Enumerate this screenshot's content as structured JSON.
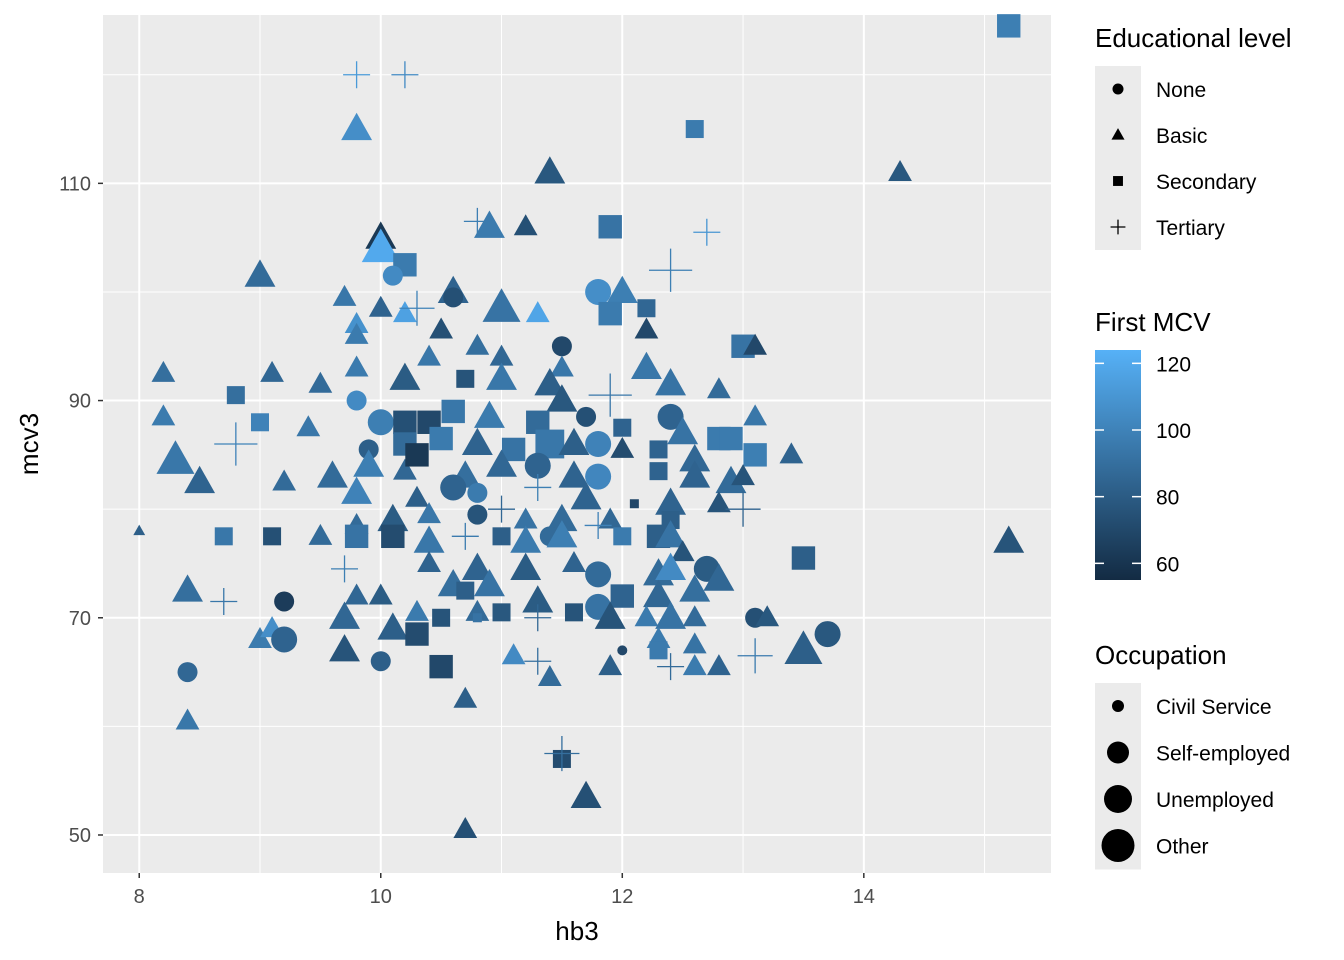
{
  "chart_data": {
    "type": "scatter",
    "xlabel": "hb3",
    "ylabel": "mcv3",
    "xlim": [
      7.7,
      15.55
    ],
    "ylim": [
      46.5,
      125.5
    ],
    "x_ticks": [
      8,
      10,
      12,
      14
    ],
    "y_ticks": [
      50,
      70,
      90,
      110
    ],
    "grid": true,
    "legend_placement": "right",
    "color_legend": {
      "title": "First MCV",
      "ticks": [
        60,
        80,
        100,
        120
      ],
      "range": [
        55,
        124
      ],
      "low_color": "#132B43",
      "high_color": "#56B1F7"
    },
    "shape_legend": {
      "title": "Educational level",
      "entries": [
        {
          "label": "None",
          "shape": "circle"
        },
        {
          "label": "Basic",
          "shape": "triangle"
        },
        {
          "label": "Secondary",
          "shape": "square"
        },
        {
          "label": "Tertiary",
          "shape": "plus"
        }
      ]
    },
    "size_legend": {
      "title": "Occupation",
      "entries": [
        {
          "label": "Civil Service",
          "size": 1
        },
        {
          "label": "Self-employed",
          "size": 2
        },
        {
          "label": "Unemployed",
          "size": 3
        },
        {
          "label": "Other",
          "size": 4
        }
      ]
    },
    "points": [
      [
        15.2,
        124.5,
        "square",
        3,
        98
      ],
      [
        14.3,
        111,
        "triangle",
        2,
        78
      ],
      [
        15.2,
        77,
        "triangle",
        3,
        76
      ],
      [
        12.6,
        115,
        "square",
        2,
        96
      ],
      [
        9.8,
        120,
        "plus",
        2,
        112
      ],
      [
        10.2,
        120,
        "plus",
        2,
        104
      ],
      [
        9.8,
        115,
        "triangle",
        3,
        106
      ],
      [
        11.4,
        111,
        "triangle",
        3,
        78
      ],
      [
        10.0,
        105,
        "triangle",
        3,
        62
      ],
      [
        10.0,
        104,
        "triangle",
        4,
        120
      ],
      [
        10.8,
        106.5,
        "plus",
        2,
        98
      ],
      [
        10.9,
        106,
        "triangle",
        3,
        96
      ],
      [
        11.2,
        106,
        "triangle",
        2,
        74
      ],
      [
        11.9,
        106,
        "square",
        3,
        92
      ],
      [
        12.7,
        105.5,
        "plus",
        2,
        110
      ],
      [
        10.2,
        102.5,
        "square",
        3,
        96
      ],
      [
        10.1,
        101.5,
        "circle",
        2,
        104
      ],
      [
        9.0,
        101.5,
        "triangle",
        3,
        88
      ],
      [
        12.4,
        102,
        "plus",
        4,
        98
      ],
      [
        11.8,
        100,
        "circle",
        3,
        106
      ],
      [
        12.0,
        100,
        "triangle",
        3,
        98
      ],
      [
        10.6,
        100,
        "triangle",
        3,
        84
      ],
      [
        9.7,
        99.5,
        "triangle",
        2,
        94
      ],
      [
        10.6,
        99.5,
        "circle",
        2,
        74
      ],
      [
        10.0,
        98.5,
        "triangle",
        2,
        84
      ],
      [
        11.0,
        98.5,
        "triangle",
        4,
        92
      ],
      [
        11.3,
        98,
        "triangle",
        2,
        118
      ],
      [
        10.2,
        98,
        "triangle",
        2,
        116
      ],
      [
        10.3,
        98.5,
        "plus",
        3,
        100
      ],
      [
        11.9,
        98,
        "square",
        3,
        96
      ],
      [
        12.2,
        98.5,
        "square",
        2,
        86
      ],
      [
        9.8,
        97,
        "triangle",
        2,
        108
      ],
      [
        10.5,
        96.5,
        "triangle",
        2,
        74
      ],
      [
        9.8,
        96,
        "triangle",
        2,
        96
      ],
      [
        12.2,
        96.5,
        "triangle",
        2,
        70
      ],
      [
        10.8,
        95,
        "triangle",
        2,
        90
      ],
      [
        11.0,
        94,
        "triangle",
        2,
        86
      ],
      [
        11.5,
        95,
        "circle",
        2,
        70
      ],
      [
        11.5,
        93,
        "triangle",
        2,
        94
      ],
      [
        13.0,
        95,
        "square",
        3,
        92
      ],
      [
        13.1,
        95,
        "triangle",
        2,
        70
      ],
      [
        8.2,
        92.5,
        "triangle",
        2,
        90
      ],
      [
        9.1,
        92.5,
        "triangle",
        2,
        86
      ],
      [
        9.5,
        91.5,
        "triangle",
        2,
        88
      ],
      [
        9.8,
        93,
        "triangle",
        2,
        96
      ],
      [
        10.2,
        92,
        "triangle",
        3,
        80
      ],
      [
        10.4,
        94,
        "triangle",
        2,
        94
      ],
      [
        10.7,
        92,
        "square",
        2,
        76
      ],
      [
        11.0,
        92,
        "triangle",
        3,
        94
      ],
      [
        11.4,
        91.5,
        "triangle",
        3,
        82
      ],
      [
        12.2,
        93,
        "triangle",
        3,
        94
      ],
      [
        12.4,
        91.5,
        "triangle",
        3,
        92
      ],
      [
        12.8,
        91,
        "triangle",
        2,
        88
      ],
      [
        11.9,
        90.5,
        "plus",
        4,
        94
      ],
      [
        9.8,
        90,
        "circle",
        2,
        104
      ],
      [
        11.5,
        90,
        "triangle",
        3,
        78
      ],
      [
        8.2,
        88.5,
        "triangle",
        2,
        96
      ],
      [
        8.8,
        90.5,
        "square",
        2,
        90
      ],
      [
        9.0,
        88,
        "square",
        2,
        100
      ],
      [
        9.4,
        87.5,
        "triangle",
        2,
        94
      ],
      [
        8.8,
        86,
        "plus",
        4,
        100
      ],
      [
        8.3,
        84.5,
        "triangle",
        4,
        94
      ],
      [
        8.5,
        82.5,
        "triangle",
        3,
        84
      ],
      [
        10.0,
        88,
        "circle",
        3,
        98
      ],
      [
        10.2,
        88,
        "square",
        3,
        74
      ],
      [
        10.4,
        88,
        "square",
        3,
        70
      ],
      [
        10.6,
        89,
        "square",
        3,
        94
      ],
      [
        10.9,
        88.5,
        "triangle",
        3,
        96
      ],
      [
        11.3,
        88,
        "square",
        3,
        88
      ],
      [
        11.7,
        88.5,
        "circle",
        2,
        74
      ],
      [
        12.0,
        87.5,
        "square",
        2,
        84
      ],
      [
        12.4,
        88.5,
        "circle",
        3,
        84
      ],
      [
        12.5,
        87,
        "triangle",
        3,
        92
      ],
      [
        12.8,
        86.5,
        "square",
        3,
        96
      ],
      [
        13.1,
        88.5,
        "triangle",
        2,
        94
      ],
      [
        9.9,
        85.5,
        "circle",
        2,
        82
      ],
      [
        10.2,
        86,
        "square",
        3,
        88
      ],
      [
        10.5,
        86.5,
        "square",
        3,
        96
      ],
      [
        10.8,
        86,
        "triangle",
        3,
        84
      ],
      [
        11.1,
        85.5,
        "square",
        3,
        92
      ],
      [
        11.4,
        86,
        "square",
        4,
        94
      ],
      [
        11.6,
        86,
        "triangle",
        3,
        82
      ],
      [
        11.8,
        86,
        "circle",
        3,
        100
      ],
      [
        12.0,
        85.5,
        "triangle",
        2,
        72
      ],
      [
        12.3,
        85.5,
        "square",
        2,
        84
      ],
      [
        12.6,
        84.5,
        "triangle",
        3,
        86
      ],
      [
        12.9,
        86.5,
        "square",
        3,
        96
      ],
      [
        13.1,
        85,
        "square",
        3,
        98
      ],
      [
        13.4,
        85,
        "triangle",
        2,
        84
      ],
      [
        9.6,
        83,
        "triangle",
        3,
        88
      ],
      [
        9.9,
        84,
        "triangle",
        3,
        98
      ],
      [
        10.2,
        83.5,
        "triangle",
        2,
        86
      ],
      [
        10.3,
        85,
        "square",
        3,
        62
      ],
      [
        10.7,
        83,
        "triangle",
        3,
        90
      ],
      [
        11.0,
        84,
        "triangle",
        3,
        86
      ],
      [
        11.3,
        84,
        "circle",
        3,
        84
      ],
      [
        11.6,
        83,
        "triangle",
        3,
        84
      ],
      [
        11.8,
        83,
        "circle",
        3,
        102
      ],
      [
        12.3,
        83.5,
        "square",
        2,
        84
      ],
      [
        12.6,
        83,
        "triangle",
        3,
        84
      ],
      [
        12.9,
        82.5,
        "triangle",
        3,
        88
      ],
      [
        13.0,
        83,
        "triangle",
        2,
        76
      ],
      [
        9.2,
        82.5,
        "triangle",
        2,
        88
      ],
      [
        9.8,
        81.5,
        "triangle",
        3,
        100
      ],
      [
        10.3,
        81,
        "triangle",
        2,
        82
      ],
      [
        10.6,
        82,
        "circle",
        3,
        84
      ],
      [
        10.8,
        81.5,
        "circle",
        2,
        96
      ],
      [
        11.3,
        82,
        "plus",
        2,
        98
      ],
      [
        11.7,
        81,
        "triangle",
        3,
        84
      ],
      [
        12.4,
        80.5,
        "triangle",
        3,
        84
      ],
      [
        12.8,
        80.5,
        "triangle",
        2,
        76
      ],
      [
        13.0,
        80,
        "plus",
        3,
        84
      ],
      [
        9.8,
        78.5,
        "triangle",
        2,
        88
      ],
      [
        10.1,
        79,
        "triangle",
        3,
        80
      ],
      [
        10.4,
        79.5,
        "triangle",
        2,
        94
      ],
      [
        10.8,
        79.5,
        "circle",
        2,
        76
      ],
      [
        11.0,
        80,
        "plus",
        2,
        86
      ],
      [
        11.2,
        79,
        "triangle",
        2,
        92
      ],
      [
        11.5,
        79,
        "triangle",
        3,
        88
      ],
      [
        11.9,
        79,
        "triangle",
        2,
        86
      ],
      [
        12.1,
        80.5,
        "square",
        1,
        70
      ],
      [
        12.4,
        79,
        "square",
        2,
        82
      ],
      [
        8.0,
        78,
        "triangle",
        1,
        82
      ],
      [
        8.7,
        77.5,
        "square",
        2,
        94
      ],
      [
        9.1,
        77.5,
        "square",
        2,
        74
      ],
      [
        9.5,
        77.5,
        "triangle",
        2,
        88
      ],
      [
        9.8,
        77.5,
        "square",
        3,
        92
      ],
      [
        10.1,
        77.5,
        "square",
        3,
        72
      ],
      [
        10.4,
        77,
        "triangle",
        3,
        94
      ],
      [
        10.7,
        77.5,
        "plus",
        2,
        96
      ],
      [
        11.0,
        77.5,
        "square",
        2,
        82
      ],
      [
        11.2,
        77,
        "triangle",
        3,
        96
      ],
      [
        11.4,
        77.5,
        "circle",
        2,
        88
      ],
      [
        11.5,
        77.5,
        "triangle",
        3,
        98
      ],
      [
        11.8,
        78.5,
        "plus",
        2,
        100
      ],
      [
        12.0,
        77.5,
        "square",
        2,
        96
      ],
      [
        12.3,
        77.5,
        "square",
        3,
        82
      ],
      [
        12.4,
        77.5,
        "triangle",
        3,
        92
      ],
      [
        12.5,
        76,
        "triangle",
        2,
        76
      ],
      [
        13.5,
        75.5,
        "square",
        3,
        82
      ],
      [
        9.7,
        74.5,
        "plus",
        2,
        98
      ],
      [
        10.4,
        75,
        "triangle",
        2,
        84
      ],
      [
        10.8,
        74.5,
        "triangle",
        3,
        84
      ],
      [
        11.2,
        74.5,
        "triangle",
        3,
        80
      ],
      [
        11.6,
        75,
        "triangle",
        2,
        84
      ],
      [
        11.8,
        74,
        "circle",
        3,
        88
      ],
      [
        12.3,
        74,
        "triangle",
        3,
        88
      ],
      [
        12.4,
        74.5,
        "triangle",
        3,
        104
      ],
      [
        12.7,
        74.5,
        "circle",
        3,
        80
      ],
      [
        12.8,
        73.5,
        "triangle",
        3,
        86
      ],
      [
        8.4,
        72.5,
        "triangle",
        3,
        90
      ],
      [
        8.7,
        71.5,
        "plus",
        2,
        94
      ],
      [
        9.2,
        71.5,
        "circle",
        2,
        64
      ],
      [
        9.8,
        72,
        "triangle",
        2,
        86
      ],
      [
        10.0,
        72,
        "triangle",
        2,
        80
      ],
      [
        10.6,
        73,
        "triangle",
        3,
        90
      ],
      [
        10.7,
        72.5,
        "square",
        2,
        82
      ],
      [
        10.9,
        73,
        "triangle",
        3,
        92
      ],
      [
        11.3,
        71.5,
        "triangle",
        3,
        80
      ],
      [
        11.8,
        71,
        "circle",
        3,
        92
      ],
      [
        12.0,
        72,
        "square",
        3,
        84
      ],
      [
        12.3,
        72,
        "triangle",
        3,
        86
      ],
      [
        12.6,
        72.5,
        "triangle",
        3,
        90
      ],
      [
        9.7,
        70,
        "triangle",
        3,
        86
      ],
      [
        10.1,
        69,
        "triangle",
        3,
        82
      ],
      [
        10.3,
        70.5,
        "triangle",
        2,
        96
      ],
      [
        10.5,
        70,
        "square",
        2,
        76
      ],
      [
        10.8,
        70.5,
        "triangle",
        2,
        88
      ],
      [
        10.8,
        70,
        "square",
        1,
        92
      ],
      [
        11.0,
        70.5,
        "square",
        2,
        78
      ],
      [
        11.3,
        70,
        "plus",
        2,
        86
      ],
      [
        11.6,
        70.5,
        "square",
        2,
        76
      ],
      [
        11.9,
        70,
        "triangle",
        3,
        76
      ],
      [
        12.2,
        70,
        "triangle",
        2,
        96
      ],
      [
        12.4,
        70,
        "triangle",
        3,
        92
      ],
      [
        12.6,
        70,
        "triangle",
        2,
        88
      ],
      [
        13.1,
        70,
        "circle",
        2,
        74
      ],
      [
        13.2,
        70,
        "triangle",
        2,
        78
      ],
      [
        9.0,
        68,
        "triangle",
        2,
        96
      ],
      [
        9.1,
        69,
        "triangle",
        2,
        106
      ],
      [
        9.2,
        68,
        "circle",
        3,
        84
      ],
      [
        10.3,
        68.5,
        "square",
        3,
        72
      ],
      [
        12.0,
        67,
        "circle",
        1,
        70
      ],
      [
        12.3,
        68,
        "triangle",
        2,
        96
      ],
      [
        12.3,
        67,
        "square",
        2,
        96
      ],
      [
        12.6,
        67.5,
        "triangle",
        2,
        92
      ],
      [
        13.1,
        66.5,
        "plus",
        3,
        96
      ],
      [
        13.5,
        67,
        "triangle",
        4,
        82
      ],
      [
        13.7,
        68.5,
        "circle",
        3,
        78
      ],
      [
        9.7,
        67,
        "triangle",
        3,
        76
      ],
      [
        11.1,
        66.5,
        "triangle",
        2,
        104
      ],
      [
        11.3,
        66,
        "plus",
        2,
        90
      ],
      [
        10.5,
        65.5,
        "square",
        3,
        70
      ],
      [
        10.0,
        66,
        "circle",
        2,
        82
      ],
      [
        11.9,
        65.5,
        "triangle",
        2,
        82
      ],
      [
        12.4,
        65.5,
        "plus",
        2,
        88
      ],
      [
        12.6,
        65.5,
        "triangle",
        2,
        96
      ],
      [
        12.8,
        65.5,
        "triangle",
        2,
        84
      ],
      [
        8.4,
        65,
        "circle",
        2,
        86
      ],
      [
        11.4,
        64.5,
        "triangle",
        2,
        88
      ],
      [
        10.7,
        62.5,
        "triangle",
        2,
        82
      ],
      [
        8.4,
        60.5,
        "triangle",
        2,
        94
      ],
      [
        11.5,
        57,
        "square",
        2,
        72
      ],
      [
        11.5,
        57.5,
        "plus",
        3,
        90
      ],
      [
        11.7,
        53.5,
        "triangle",
        3,
        74
      ],
      [
        10.7,
        50.5,
        "triangle",
        2,
        74
      ]
    ]
  }
}
